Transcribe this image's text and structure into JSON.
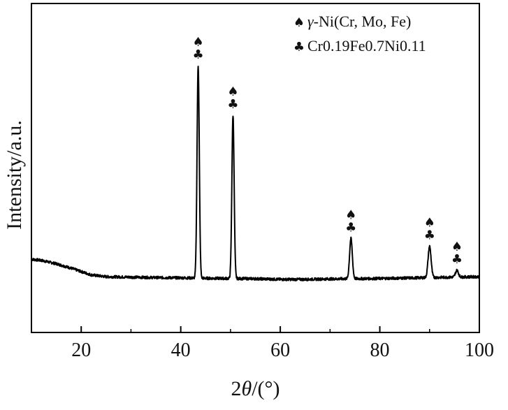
{
  "chart_data": {
    "type": "line",
    "xlabel_parts": {
      "prefix": "2",
      "symbol": "θ",
      "suffix": "/(°)"
    },
    "ylabel": "Intensity/a.u.",
    "xlim": [
      10,
      100
    ],
    "x_ticks": [
      20,
      40,
      60,
      80,
      100
    ],
    "y_ticks_shown": false,
    "grid": false,
    "legend_position": "top-right",
    "legend": [
      {
        "symbol": "♠",
        "symbol_name": "spade-icon",
        "label_parts": {
          "greek": "γ",
          "rest": "-Ni(Cr, Mo, Fe)"
        }
      },
      {
        "symbol": "♣",
        "symbol_name": "club-icon",
        "label": "Cr0.19Fe0.7Ni0.11"
      }
    ],
    "peaks": [
      {
        "x": 43.5,
        "height": 0.95,
        "width": 0.45,
        "markers": [
          "♠",
          "♣"
        ]
      },
      {
        "x": 50.5,
        "height": 0.73,
        "width": 0.45,
        "markers": [
          "♠",
          "♣"
        ]
      },
      {
        "x": 74.2,
        "height": 0.18,
        "width": 0.55,
        "markers": [
          "♠",
          "♣"
        ]
      },
      {
        "x": 90.0,
        "height": 0.14,
        "width": 0.6,
        "markers": [
          "♠",
          "♣"
        ]
      },
      {
        "x": 95.5,
        "height": 0.03,
        "width": 0.6,
        "markers": [
          "♠",
          "♣"
        ]
      }
    ],
    "baseline": [
      [
        10,
        0.09
      ],
      [
        12,
        0.085
      ],
      [
        15,
        0.07
      ],
      [
        18,
        0.05
      ],
      [
        20,
        0.035
      ],
      [
        22,
        0.02
      ],
      [
        25,
        0.012
      ],
      [
        30,
        0.01
      ],
      [
        35,
        0.008
      ],
      [
        40,
        0.007
      ],
      [
        45,
        0.005
      ],
      [
        50,
        0.004
      ],
      [
        55,
        0.003
      ],
      [
        60,
        0.0
      ],
      [
        65,
        0.0
      ],
      [
        70,
        0.002
      ],
      [
        75,
        0.003
      ],
      [
        80,
        0.004
      ],
      [
        85,
        0.006
      ],
      [
        90,
        0.008
      ],
      [
        95,
        0.01
      ],
      [
        100,
        0.012
      ]
    ],
    "series_color": "#000000"
  }
}
